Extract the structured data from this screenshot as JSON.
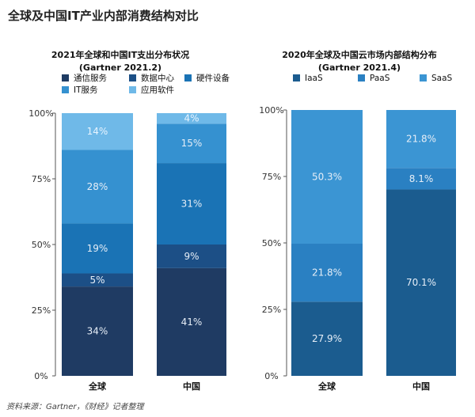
{
  "page_title": "全球及中国IT产业内部消费结构对比",
  "source": "资料来源：Gartner，《财经》记者整理",
  "chart_data": [
    {
      "type": "bar",
      "stacked": true,
      "title": "2021年全球和中国IT支出分布状况",
      "subtitle": "(Gartner 2021.2)",
      "categories": [
        "全球",
        "中国"
      ],
      "ylim": [
        0,
        100
      ],
      "yticks": [
        "0%",
        "25%",
        "50%",
        "75%",
        "100%"
      ],
      "legend_position": "top",
      "series": [
        {
          "name": "通信服务",
          "values": [
            34,
            41
          ],
          "labels": [
            "34%",
            "41%"
          ],
          "color": "#1f3b63"
        },
        {
          "name": "数据中心",
          "values": [
            5,
            9
          ],
          "labels": [
            "5%",
            "9%"
          ],
          "color": "#1c4f86"
        },
        {
          "name": "硬件设备",
          "values": [
            19,
            31
          ],
          "labels": [
            "19%",
            "31%"
          ],
          "color": "#1a73b5"
        },
        {
          "name": "IT服务",
          "values": [
            28,
            15
          ],
          "labels": [
            "28%",
            "15%"
          ],
          "color": "#3591d0"
        },
        {
          "name": "应用软件",
          "values": [
            14,
            4
          ],
          "labels": [
            "14%",
            "4%"
          ],
          "color": "#6fb9e8"
        }
      ]
    },
    {
      "type": "bar",
      "stacked": true,
      "title": "2020年全球及中国云市场内部结构分布",
      "subtitle": "(Gartner 2021.4)",
      "categories": [
        "全球",
        "中国"
      ],
      "ylim": [
        0,
        100
      ],
      "yticks": [
        "0%",
        "25%",
        "50%",
        "75%",
        "100%"
      ],
      "legend_position": "top",
      "series": [
        {
          "name": "IaaS",
          "values": [
            27.9,
            70.1
          ],
          "labels": [
            "27.9%",
            "70.1%"
          ],
          "color": "#1b5c8f"
        },
        {
          "name": "PaaS",
          "values": [
            21.8,
            8.1
          ],
          "labels": [
            "21.8%",
            "8.1%"
          ],
          "color": "#2a80c2"
        },
        {
          "name": "SaaS",
          "values": [
            50.3,
            21.8
          ],
          "labels": [
            "50.3%",
            "21.8%"
          ],
          "color": "#3b95d3"
        }
      ]
    }
  ]
}
